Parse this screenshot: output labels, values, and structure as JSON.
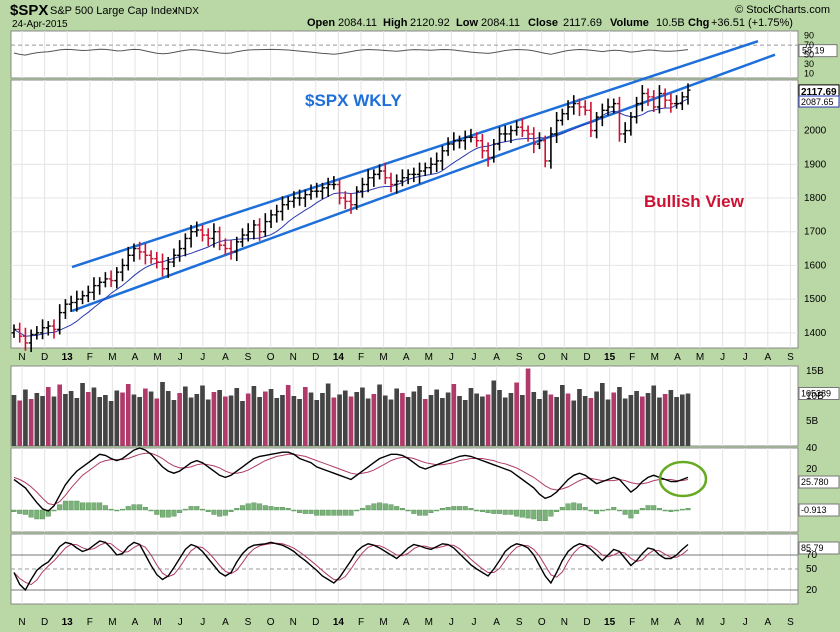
{
  "header": {
    "symbol": "$SPX",
    "name": "S&P 500 Large Cap Index",
    "exchange": "INDX",
    "date": "24-Apr-2015",
    "open_label": "Open",
    "open": "2084.11",
    "high_label": "High",
    "high": "2120.92",
    "low_label": "Low",
    "low": "2084.11",
    "close_label": "Close",
    "close": "2117.69",
    "volume_label": "Volume",
    "volume": "10.5B",
    "chg_label": "Chg",
    "chg": "+36.51 (+1.75%)",
    "watermark": "© StockCharts.com"
  },
  "colors": {
    "up": "#000000",
    "down": "#cc1133",
    "volume_up": "#444444",
    "volume_down": "#b03a6a",
    "channel": "#1e6fd9",
    "ma": "#2a3ab0",
    "macd_signal": "#b03a6a",
    "hist": "#7ab27a",
    "circle": "#66aa22",
    "bg": "#b9d8a6",
    "panel": "#ffffff"
  },
  "chart_data": {
    "type": "candlestick",
    "x_labels": [
      "N",
      "D",
      "13",
      "F",
      "M",
      "A",
      "M",
      "J",
      "J",
      "A",
      "S",
      "O",
      "N",
      "D",
      "14",
      "F",
      "M",
      "A",
      "M",
      "J",
      "J",
      "A",
      "S",
      "O",
      "N",
      "D",
      "15",
      "F",
      "M",
      "A",
      "M",
      "J",
      "J",
      "A",
      "S"
    ],
    "bold_x_labels": [
      "13",
      "14",
      "15"
    ],
    "price": {
      "y_ticks": [
        1400,
        1500,
        1600,
        1700,
        1800,
        1900,
        2000
      ],
      "y_range": [
        1355,
        2150
      ],
      "last_close": "2117.69",
      "ma_value": "2087.65",
      "closes": [
        1410,
        1390,
        1370,
        1395,
        1400,
        1415,
        1420,
        1410,
        1460,
        1485,
        1490,
        1500,
        1510,
        1520,
        1540,
        1550,
        1560,
        1555,
        1580,
        1600,
        1630,
        1650,
        1640,
        1630,
        1620,
        1610,
        1590,
        1610,
        1630,
        1650,
        1680,
        1700,
        1705,
        1690,
        1680,
        1700,
        1660,
        1650,
        1640,
        1670,
        1690,
        1700,
        1720,
        1700,
        1730,
        1750,
        1760,
        1780,
        1790,
        1800,
        1800,
        1810,
        1820,
        1820,
        1830,
        1840,
        1840,
        1800,
        1790,
        1780,
        1820,
        1840,
        1860,
        1870,
        1880,
        1860,
        1840,
        1850,
        1860,
        1870,
        1870,
        1880,
        1890,
        1900,
        1910,
        1940,
        1960,
        1970,
        1970,
        1980,
        1980,
        1970,
        1940,
        1920,
        1960,
        1990,
        1990,
        2000,
        2010,
        2000,
        1990,
        1960,
        1970,
        1910,
        1990,
        2030,
        2050,
        2070,
        2080,
        2070,
        2060,
        2000,
        2040,
        2060,
        2070,
        2080,
        1990,
        2000,
        2040,
        2080,
        2110,
        2100,
        2070,
        2110,
        2090,
        2080,
        2080,
        2100,
        2120
      ],
      "annotations": [
        {
          "text": "$SPX WKLY",
          "color": "#1e6fd9"
        },
        {
          "text": "Bullish View",
          "color": "#cc1133"
        }
      ]
    },
    "rsi_top": {
      "y_ticks": [
        10,
        30,
        50,
        70,
        90
      ],
      "y_range": [
        0,
        100
      ],
      "last": "58.19"
    },
    "volume": {
      "y_tick_labels": [
        "15B",
        "10B",
        "5B"
      ],
      "y_range": [
        0,
        16
      ],
      "last": "105389",
      "values": [
        10.2,
        9.1,
        11.3,
        9.4,
        10.6,
        10.0,
        11.8,
        9.9,
        12.3,
        10.4,
        11.0,
        9.6,
        12.6,
        10.8,
        11.7,
        9.8,
        10.2,
        9.0,
        11.1,
        10.7,
        12.4,
        10.3,
        9.8,
        11.5,
        10.9,
        9.5,
        12.8,
        11.0,
        9.2,
        10.6,
        11.9,
        9.7,
        10.4,
        12.1,
        9.3,
        10.8,
        11.2,
        9.9,
        10.1,
        11.6,
        9.0,
        10.5,
        12.0,
        9.8,
        10.9,
        11.4,
        9.6,
        10.2,
        12.2,
        10.0,
        9.4,
        11.8,
        10.7,
        9.2,
        10.6,
        12.5,
        9.7,
        10.3,
        11.1,
        9.9,
        10.8,
        11.7,
        9.5,
        10.4,
        12.3,
        10.1,
        9.3,
        11.5,
        10.6,
        9.8,
        10.9,
        12.0,
        9.4,
        10.2,
        11.3,
        9.6,
        10.7,
        12.4,
        10.0,
        9.2,
        11.6,
        10.5,
        9.9,
        10.3,
        13.1,
        11.2,
        9.7,
        10.6,
        12.7,
        10.2,
        15.5,
        10.8,
        9.4,
        11.1,
        10.3,
        9.8,
        12.2,
        10.5,
        9.1,
        11.4,
        10.0,
        9.6,
        10.9,
        12.6,
        9.3,
        10.7,
        11.8,
        9.5,
        10.2,
        11.0,
        9.9,
        10.6,
        12.1,
        9.7,
        10.4,
        11.2,
        9.8,
        10.3,
        10.5
      ],
      "downs": [
        1,
        3,
        6,
        8,
        13,
        19,
        20,
        23,
        25,
        29,
        35,
        37,
        41,
        44,
        48,
        51,
        56,
        59,
        63,
        68,
        72,
        77,
        83,
        88,
        90,
        94,
        97,
        101,
        105,
        110,
        114
      ]
    },
    "macd": {
      "y_ticks": [
        40,
        20
      ],
      "last_macd": "25.780",
      "last_hist": "-0.913",
      "macd": [
        10,
        6,
        2,
        -5,
        -12,
        -18,
        -20,
        -15,
        -5,
        5,
        12,
        18,
        22,
        26,
        30,
        34,
        33,
        30,
        28,
        30,
        34,
        38,
        40,
        38,
        34,
        28,
        22,
        18,
        16,
        18,
        22,
        26,
        28,
        26,
        22,
        18,
        14,
        12,
        14,
        18,
        22,
        26,
        30,
        32,
        33,
        34,
        35,
        36,
        36,
        34,
        30,
        28,
        26,
        22,
        20,
        18,
        16,
        14,
        12,
        10,
        14,
        18,
        22,
        26,
        30,
        32,
        34,
        34,
        33,
        30,
        26,
        22,
        20,
        22,
        24,
        26,
        28,
        30,
        32,
        33,
        32,
        30,
        28,
        26,
        24,
        22,
        20,
        18,
        14,
        10,
        6,
        2,
        -4,
        -8,
        -6,
        -2,
        4,
        10,
        14,
        16,
        14,
        10,
        6,
        8,
        10,
        12,
        10,
        4,
        -2,
        2,
        8,
        12,
        14,
        12,
        10,
        8,
        8,
        10,
        12
      ],
      "signal": [
        12,
        10,
        7,
        3,
        -2,
        -8,
        -13,
        -14,
        -11,
        -5,
        2,
        8,
        14,
        18,
        22,
        26,
        28,
        29,
        29,
        29,
        30,
        32,
        34,
        35,
        35,
        33,
        30,
        26,
        23,
        21,
        21,
        22,
        24,
        25,
        24,
        23,
        21,
        18,
        16,
        16,
        17,
        19,
        22,
        25,
        28,
        30,
        32,
        33,
        34,
        34,
        33,
        32,
        30,
        28,
        26,
        24,
        22,
        20,
        18,
        16,
        15,
        16,
        17,
        19,
        22,
        25,
        28,
        30,
        31,
        31,
        30,
        28,
        26,
        25,
        24,
        24,
        25,
        26,
        28,
        29,
        30,
        30,
        30,
        29,
        28,
        26,
        25,
        23,
        21,
        18,
        15,
        12,
        8,
        4,
        1,
        0,
        1,
        3,
        6,
        9,
        11,
        11,
        10,
        9,
        9,
        9,
        10,
        9,
        7,
        6,
        6,
        7,
        9,
        10,
        10,
        10,
        9,
        9,
        10
      ],
      "hist": [
        -2,
        -4,
        -5,
        -8,
        -10,
        -10,
        -7,
        -1,
        6,
        10,
        10,
        10,
        8,
        8,
        8,
        8,
        5,
        1,
        -1,
        1,
        4,
        6,
        6,
        3,
        -1,
        -5,
        -8,
        -8,
        -7,
        -3,
        1,
        4,
        4,
        1,
        -2,
        -5,
        -7,
        -6,
        -2,
        2,
        5,
        7,
        8,
        7,
        5,
        4,
        3,
        3,
        2,
        0,
        -3,
        -4,
        -4,
        -6,
        -6,
        -6,
        -6,
        -6,
        -6,
        -6,
        -1,
        2,
        5,
        7,
        8,
        7,
        6,
        4,
        2,
        -1,
        -4,
        -6,
        -6,
        -3,
        0,
        2,
        3,
        4,
        4,
        4,
        2,
        0,
        -2,
        -3,
        -4,
        -4,
        -5,
        -5,
        -7,
        -8,
        -9,
        -10,
        -12,
        -12,
        -7,
        -2,
        3,
        7,
        8,
        7,
        3,
        -1,
        -4,
        -1,
        1,
        3,
        0,
        -5,
        -9,
        -4,
        2,
        5,
        5,
        2,
        0,
        -2,
        -1,
        1,
        2
      ]
    },
    "rsi": {
      "y_ticks": [
        20,
        50,
        70
      ],
      "y_range": [
        0,
        100
      ],
      "last": "85.79",
      "values": [
        45,
        28,
        20,
        35,
        48,
        55,
        60,
        70,
        82,
        88,
        86,
        80,
        75,
        78,
        84,
        90,
        88,
        80,
        70,
        72,
        82,
        88,
        85,
        70,
        55,
        42,
        35,
        40,
        52,
        65,
        78,
        85,
        82,
        75,
        65,
        55,
        45,
        40,
        45,
        60,
        72,
        80,
        84,
        85,
        86,
        88,
        86,
        84,
        80,
        75,
        68,
        62,
        55,
        48,
        40,
        35,
        30,
        38,
        50,
        62,
        75,
        82,
        86,
        84,
        80,
        75,
        70,
        65,
        72,
        80,
        85,
        83,
        80,
        78,
        82,
        86,
        85,
        80,
        72,
        64,
        56,
        50,
        45,
        40,
        50,
        62,
        75,
        82,
        86,
        84,
        80,
        70,
        55,
        40,
        30,
        45,
        62,
        75,
        82,
        86,
        84,
        78,
        70,
        62,
        70,
        78,
        75,
        65,
        55,
        62,
        72,
        80,
        78,
        70,
        65,
        65,
        70,
        78,
        85
      ]
    }
  }
}
